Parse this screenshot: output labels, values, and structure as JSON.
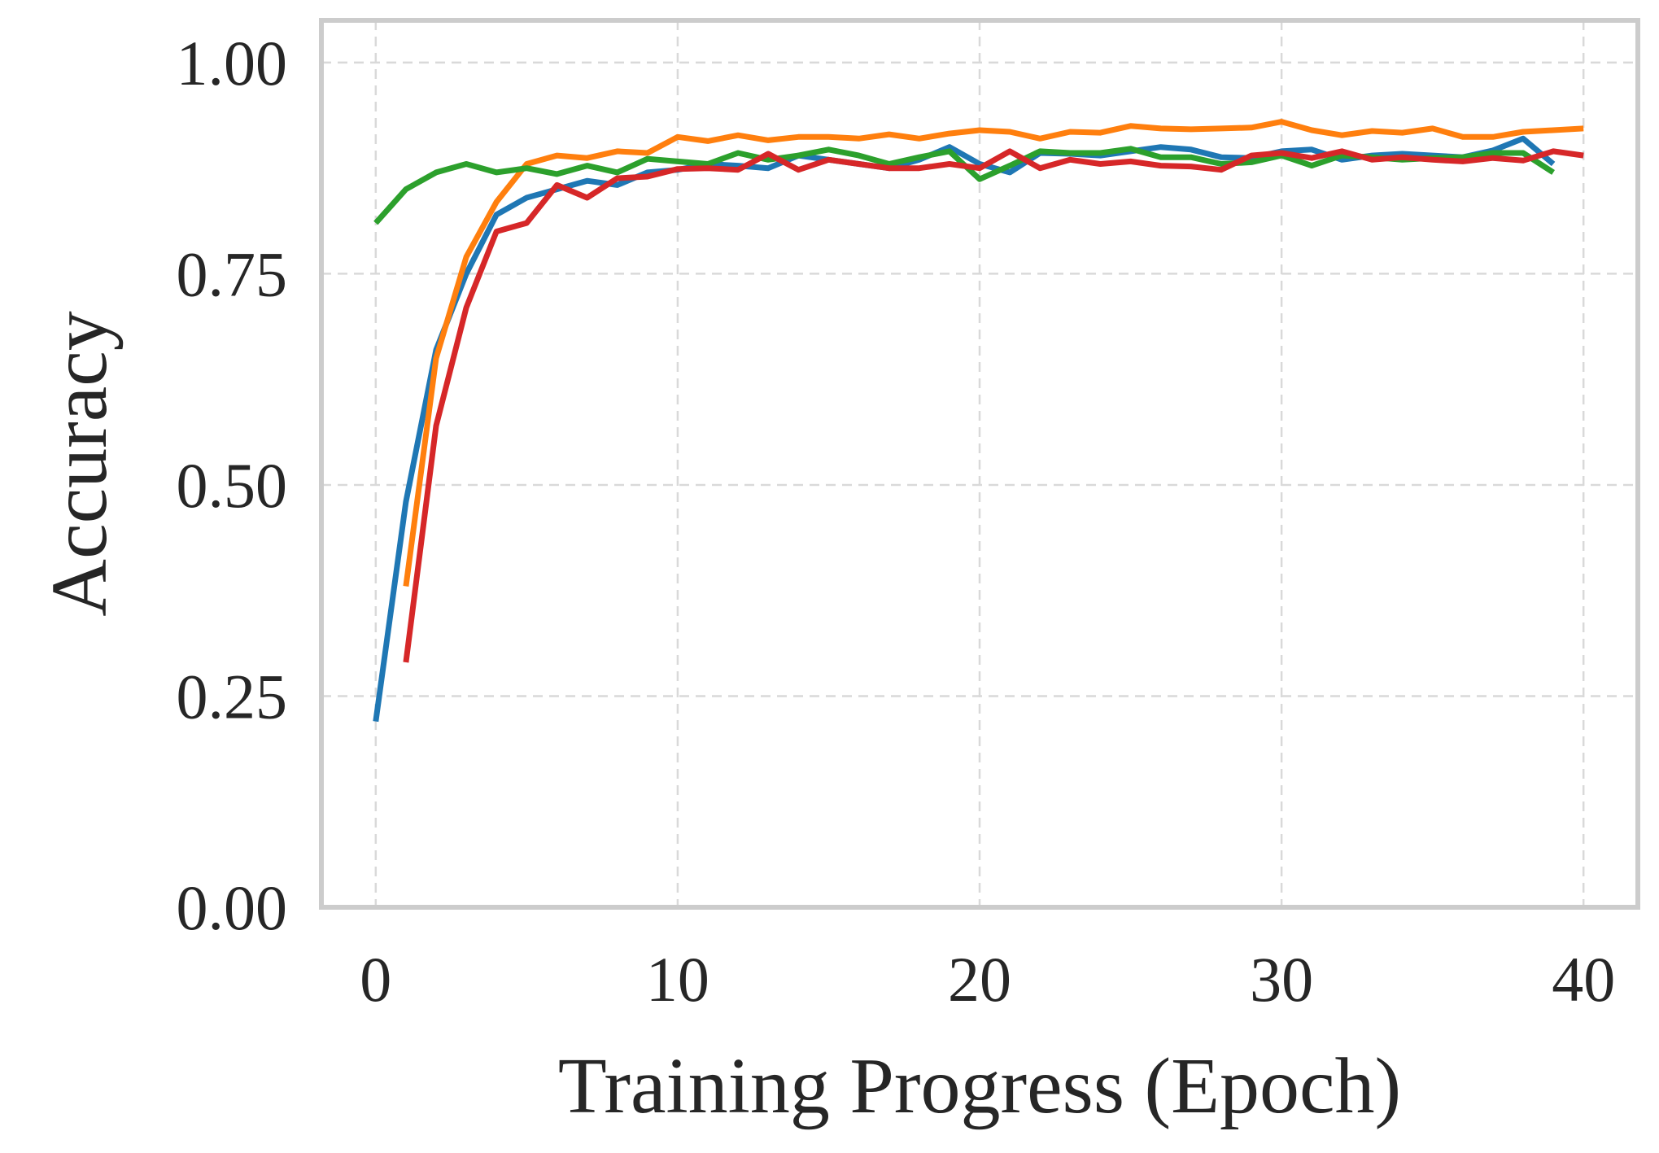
{
  "chart_data": {
    "type": "line",
    "title": "",
    "xlabel": "Training Progress (Epoch)",
    "ylabel": "Accuracy",
    "xlim": [
      -1.8,
      41.8
    ],
    "ylim": [
      0.0,
      1.05
    ],
    "xticks": [
      0,
      10,
      20,
      30,
      40
    ],
    "xtick_labels": [
      "0",
      "10",
      "20",
      "30",
      "40"
    ],
    "yticks": [
      0.0,
      0.25,
      0.5,
      0.75,
      1.0
    ],
    "ytick_labels": [
      "0.00",
      "0.25",
      "0.50",
      "0.75",
      "1.00"
    ],
    "grid": true,
    "legend": "none",
    "series": [
      {
        "color": "#1f77b4",
        "x": [
          0,
          1,
          2,
          3,
          4,
          5,
          6,
          7,
          8,
          9,
          10,
          11,
          12,
          13,
          14,
          15,
          16,
          17,
          18,
          19,
          20,
          21,
          22,
          23,
          24,
          25,
          26,
          27,
          28,
          29,
          30,
          31,
          32,
          33,
          34,
          35,
          36,
          37,
          38,
          39
        ],
        "y": [
          0.22,
          0.48,
          0.66,
          0.75,
          0.82,
          0.84,
          0.85,
          0.86,
          0.855,
          0.87,
          0.873,
          0.88,
          0.878,
          0.875,
          0.89,
          0.885,
          0.88,
          0.875,
          0.885,
          0.9,
          0.88,
          0.87,
          0.893,
          0.892,
          0.89,
          0.895,
          0.9,
          0.897,
          0.888,
          0.887,
          0.895,
          0.897,
          0.885,
          0.89,
          0.892,
          0.89,
          0.888,
          0.896,
          0.91,
          0.88
        ]
      },
      {
        "color": "#ff7f0e",
        "x": [
          1,
          2,
          3,
          4,
          5,
          6,
          7,
          8,
          9,
          10,
          11,
          12,
          13,
          14,
          15,
          16,
          17,
          18,
          19,
          20,
          21,
          22,
          23,
          24,
          25,
          26,
          27,
          28,
          29,
          30,
          31,
          32,
          33,
          34,
          35,
          36,
          37,
          38,
          39,
          40
        ],
        "y": [
          0.38,
          0.65,
          0.77,
          0.835,
          0.88,
          0.89,
          0.887,
          0.895,
          0.893,
          0.912,
          0.907,
          0.914,
          0.908,
          0.912,
          0.912,
          0.91,
          0.915,
          0.91,
          0.916,
          0.92,
          0.918,
          0.91,
          0.918,
          0.917,
          0.925,
          0.922,
          0.921,
          0.922,
          0.923,
          0.93,
          0.92,
          0.914,
          0.919,
          0.917,
          0.922,
          0.912,
          0.912,
          0.918,
          0.92,
          0.922
        ]
      },
      {
        "color": "#2ca02c",
        "x": [
          0,
          1,
          2,
          3,
          4,
          5,
          6,
          7,
          8,
          9,
          10,
          11,
          12,
          13,
          14,
          15,
          16,
          17,
          18,
          19,
          20,
          21,
          22,
          23,
          24,
          25,
          26,
          27,
          28,
          29,
          30,
          31,
          32,
          33,
          34,
          35,
          36,
          37,
          38,
          39
        ],
        "y": [
          0.81,
          0.85,
          0.87,
          0.88,
          0.87,
          0.875,
          0.868,
          0.878,
          0.87,
          0.886,
          0.883,
          0.88,
          0.893,
          0.885,
          0.89,
          0.897,
          0.89,
          0.88,
          0.888,
          0.895,
          0.862,
          0.878,
          0.895,
          0.893,
          0.893,
          0.898,
          0.888,
          0.888,
          0.88,
          0.882,
          0.89,
          0.878,
          0.89,
          0.888,
          0.885,
          0.887,
          0.888,
          0.893,
          0.893,
          0.87
        ]
      },
      {
        "color": "#d62728",
        "x": [
          1,
          2,
          3,
          4,
          5,
          6,
          7,
          8,
          9,
          10,
          11,
          12,
          13,
          14,
          15,
          16,
          17,
          18,
          19,
          20,
          21,
          22,
          23,
          24,
          25,
          26,
          27,
          28,
          29,
          30,
          31,
          32,
          33,
          34,
          35,
          36,
          37,
          38,
          39,
          40
        ],
        "y": [
          0.29,
          0.57,
          0.71,
          0.8,
          0.81,
          0.855,
          0.84,
          0.863,
          0.865,
          0.874,
          0.875,
          0.873,
          0.892,
          0.873,
          0.885,
          0.88,
          0.875,
          0.875,
          0.88,
          0.875,
          0.895,
          0.875,
          0.885,
          0.88,
          0.883,
          0.878,
          0.877,
          0.873,
          0.89,
          0.893,
          0.887,
          0.895,
          0.885,
          0.888,
          0.885,
          0.883,
          0.887,
          0.884,
          0.895,
          0.89
        ]
      }
    ]
  }
}
